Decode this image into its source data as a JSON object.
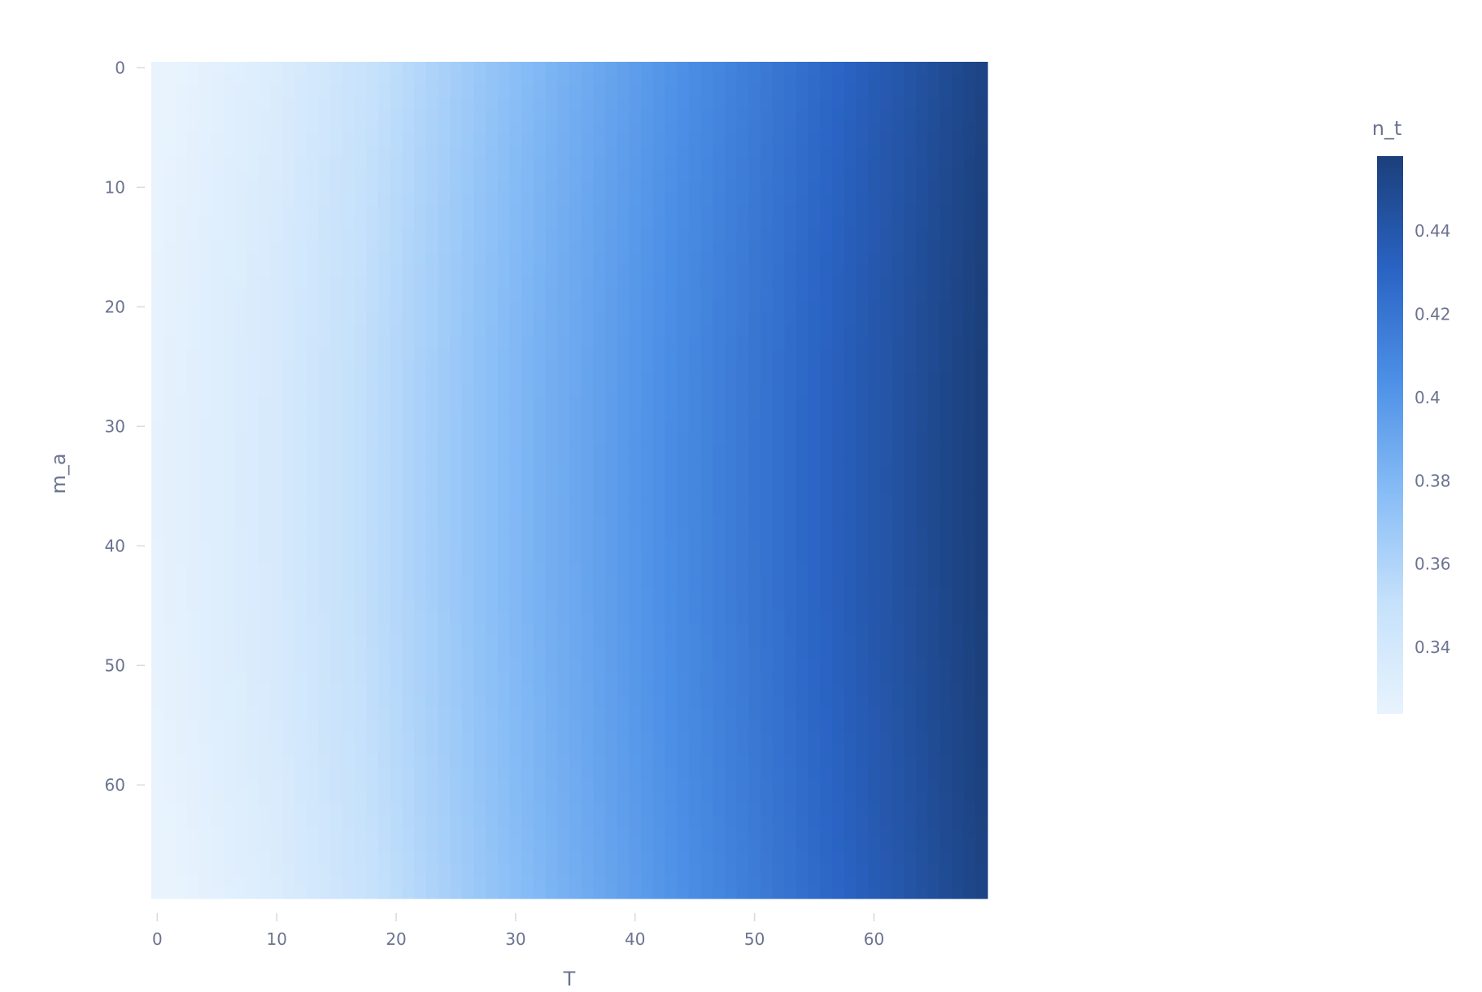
{
  "chart_data": {
    "type": "heatmap",
    "title": "",
    "xlabel": "T",
    "ylabel": "m_a",
    "x_range": [
      -0.5,
      69.5
    ],
    "y_range": [
      -0.5,
      69.5
    ],
    "y_reversed": true,
    "n_cols": 70,
    "n_rows": 70,
    "x_ticks": [
      0,
      10,
      20,
      30,
      40,
      50,
      60
    ],
    "y_ticks": [
      0,
      10,
      20,
      30,
      40,
      50,
      60
    ],
    "value_min": 0.324,
    "value_max": 0.458,
    "colorbar": {
      "title": "n_t",
      "ticks": [
        0.34,
        0.36,
        0.38,
        0.4,
        0.42,
        0.44
      ],
      "tick_labels": [
        "0.34",
        "0.36",
        "0.38",
        "0.4",
        "0.42",
        "0.44"
      ],
      "range": [
        0.324,
        0.458
      ]
    },
    "colorscale": [
      [
        0.0,
        "#e8f3fd"
      ],
      [
        0.2,
        "#c5e1fb"
      ],
      [
        0.4,
        "#86bcf6"
      ],
      [
        0.6,
        "#4c8fe6"
      ],
      [
        0.8,
        "#2a63c3"
      ],
      [
        1.0,
        "#1b3f7a"
      ]
    ],
    "column_profile": {
      "description_free": true,
      "T": [
        0,
        10,
        20,
        30,
        40,
        50,
        60,
        69
      ],
      "n_t_at_center_row": [
        0.326,
        0.338,
        0.358,
        0.38,
        0.4,
        0.42,
        0.44,
        0.458
      ],
      "edge_row_offset": -0.004
    },
    "grid": false,
    "legend": "right"
  }
}
